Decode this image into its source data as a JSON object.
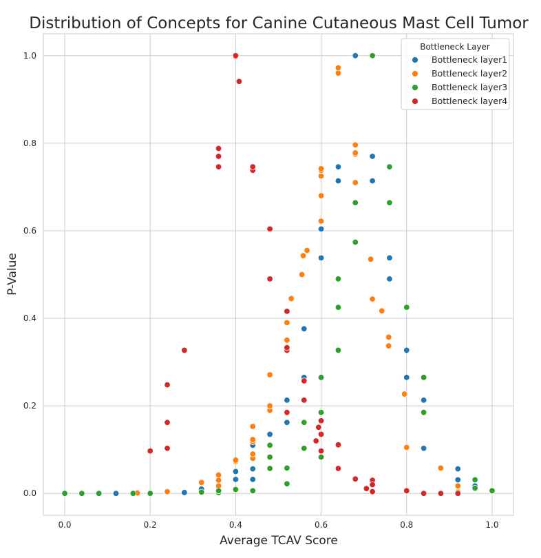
{
  "chart_data": {
    "type": "scatter",
    "title": "Distribution of Concepts for Canine Cutaneous Mast Cell Tumor",
    "xlabel": "Average TCAV Score",
    "ylabel": "P-Value",
    "xlim": [
      -0.05,
      1.05
    ],
    "ylim": [
      -0.05,
      1.05
    ],
    "xticks": [
      "0.0",
      "0.2",
      "0.4",
      "0.6",
      "0.8",
      "1.0"
    ],
    "yticks": [
      "0.0",
      "0.2",
      "0.4",
      "0.6",
      "0.8",
      "1.0"
    ],
    "grid": true,
    "legend": {
      "title": "Bottleneck Layer",
      "position": "top-right"
    },
    "series": [
      {
        "name": "Bottleneck layer1",
        "color": "#1f77b4",
        "points": [
          [
            0.0,
            0.0
          ],
          [
            0.08,
            0.0
          ],
          [
            0.12,
            0.0
          ],
          [
            0.2,
            0.0
          ],
          [
            0.28,
            0.002
          ],
          [
            0.32,
            0.01
          ],
          [
            0.36,
            0.005
          ],
          [
            0.4,
            0.032
          ],
          [
            0.4,
            0.05
          ],
          [
            0.44,
            0.032
          ],
          [
            0.44,
            0.056
          ],
          [
            0.44,
            0.11
          ],
          [
            0.48,
            0.135
          ],
          [
            0.52,
            0.162
          ],
          [
            0.52,
            0.213
          ],
          [
            0.56,
            0.265
          ],
          [
            0.56,
            0.376
          ],
          [
            0.6,
            0.538
          ],
          [
            0.6,
            0.604
          ],
          [
            0.64,
            0.714
          ],
          [
            0.64,
            0.746
          ],
          [
            0.68,
            1.0
          ],
          [
            0.72,
            0.714
          ],
          [
            0.72,
            0.77
          ],
          [
            0.76,
            0.49
          ],
          [
            0.76,
            0.538
          ],
          [
            0.8,
            0.327
          ],
          [
            0.8,
            0.265
          ],
          [
            0.84,
            0.213
          ],
          [
            0.84,
            0.103
          ],
          [
            0.88,
            0.057
          ],
          [
            0.92,
            0.056
          ],
          [
            0.92,
            0.031
          ],
          [
            0.92,
            0.005
          ],
          [
            0.96,
            0.017
          ],
          [
            1.0,
            0.007
          ]
        ]
      },
      {
        "name": "Bottleneck layer2",
        "color": "#ff7f0e",
        "points": [
          [
            0.17,
            0.001
          ],
          [
            0.24,
            0.004
          ],
          [
            0.32,
            0.025
          ],
          [
            0.36,
            0.042
          ],
          [
            0.36,
            0.03
          ],
          [
            0.36,
            0.017
          ],
          [
            0.4,
            0.073
          ],
          [
            0.4,
            0.076
          ],
          [
            0.44,
            0.08
          ],
          [
            0.44,
            0.09
          ],
          [
            0.44,
            0.118
          ],
          [
            0.44,
            0.123
          ],
          [
            0.44,
            0.153
          ],
          [
            0.48,
            0.19
          ],
          [
            0.48,
            0.2
          ],
          [
            0.48,
            0.271
          ],
          [
            0.52,
            0.35
          ],
          [
            0.52,
            0.39
          ],
          [
            0.53,
            0.445
          ],
          [
            0.555,
            0.5
          ],
          [
            0.558,
            0.543
          ],
          [
            0.567,
            0.555
          ],
          [
            0.6,
            0.622
          ],
          [
            0.6,
            0.68
          ],
          [
            0.6,
            0.725
          ],
          [
            0.6,
            0.738
          ],
          [
            0.6,
            0.742
          ],
          [
            0.64,
            0.96
          ],
          [
            0.64,
            0.972
          ],
          [
            0.68,
            0.71
          ],
          [
            0.68,
            0.775
          ],
          [
            0.68,
            0.778
          ],
          [
            0.68,
            0.796
          ],
          [
            0.716,
            0.535
          ],
          [
            0.72,
            0.444
          ],
          [
            0.742,
            0.417
          ],
          [
            0.758,
            0.337
          ],
          [
            0.758,
            0.357
          ],
          [
            0.795,
            0.227
          ],
          [
            0.8,
            0.105
          ],
          [
            0.88,
            0.058
          ],
          [
            0.92,
            0.017
          ],
          [
            0.92,
            0.003
          ]
        ]
      },
      {
        "name": "Bottleneck layer3",
        "color": "#2ca02c",
        "points": [
          [
            0.0,
            0.0
          ],
          [
            0.04,
            0.0
          ],
          [
            0.08,
            0.0
          ],
          [
            0.16,
            0.0
          ],
          [
            0.2,
            0.0
          ],
          [
            0.32,
            0.003
          ],
          [
            0.36,
            0.002
          ],
          [
            0.36,
            0.006
          ],
          [
            0.4,
            0.009
          ],
          [
            0.44,
            0.006
          ],
          [
            0.48,
            0.057
          ],
          [
            0.48,
            0.083
          ],
          [
            0.48,
            0.11
          ],
          [
            0.52,
            0.022
          ],
          [
            0.52,
            0.058
          ],
          [
            0.56,
            0.103
          ],
          [
            0.56,
            0.162
          ],
          [
            0.6,
            0.083
          ],
          [
            0.6,
            0.185
          ],
          [
            0.6,
            0.265
          ],
          [
            0.64,
            0.327
          ],
          [
            0.64,
            0.425
          ],
          [
            0.64,
            0.49
          ],
          [
            0.68,
            0.574
          ],
          [
            0.68,
            0.664
          ],
          [
            0.72,
            1.0
          ],
          [
            0.76,
            0.664
          ],
          [
            0.76,
            0.746
          ],
          [
            0.8,
            0.425
          ],
          [
            0.84,
            0.265
          ],
          [
            0.84,
            0.185
          ],
          [
            0.96,
            0.031
          ],
          [
            0.96,
            0.012
          ],
          [
            1.0,
            0.006
          ]
        ]
      },
      {
        "name": "Bottleneck layer4",
        "color": "#d62728",
        "points": [
          [
            0.2,
            0.097
          ],
          [
            0.24,
            0.103
          ],
          [
            0.24,
            0.162
          ],
          [
            0.24,
            0.248
          ],
          [
            0.28,
            0.327
          ],
          [
            0.36,
            0.746
          ],
          [
            0.36,
            0.77
          ],
          [
            0.36,
            0.788
          ],
          [
            0.4,
            0.998
          ],
          [
            0.4,
            1.0
          ],
          [
            0.408,
            0.941
          ],
          [
            0.44,
            0.738
          ],
          [
            0.44,
            0.746
          ],
          [
            0.48,
            0.49
          ],
          [
            0.48,
            0.604
          ],
          [
            0.52,
            0.185
          ],
          [
            0.52,
            0.327
          ],
          [
            0.52,
            0.333
          ],
          [
            0.52,
            0.416
          ],
          [
            0.56,
            0.213
          ],
          [
            0.56,
            0.257
          ],
          [
            0.588,
            0.12
          ],
          [
            0.594,
            0.151
          ],
          [
            0.6,
            0.097
          ],
          [
            0.6,
            0.135
          ],
          [
            0.6,
            0.166
          ],
          [
            0.64,
            0.111
          ],
          [
            0.64,
            0.057
          ],
          [
            0.68,
            0.033
          ],
          [
            0.706,
            0.011
          ],
          [
            0.72,
            0.03
          ],
          [
            0.72,
            0.02
          ],
          [
            0.72,
            0.004
          ],
          [
            0.8,
            0.006
          ],
          [
            0.84,
            0.0
          ],
          [
            0.88,
            0.0
          ],
          [
            0.92,
            0.0
          ]
        ]
      }
    ]
  }
}
